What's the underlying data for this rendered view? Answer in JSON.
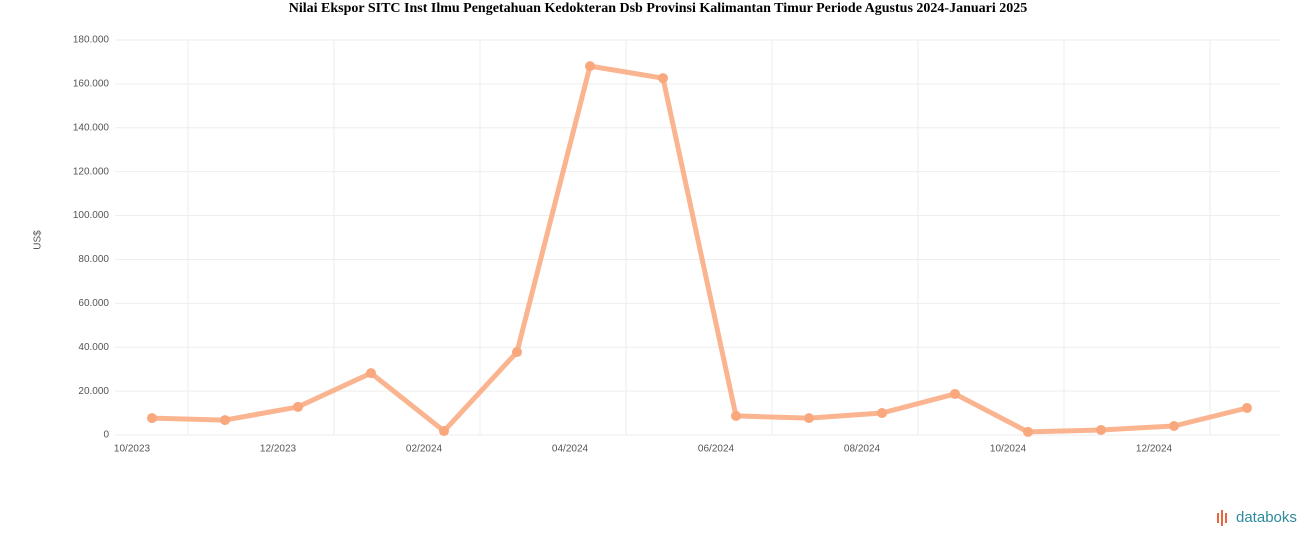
{
  "chart_data": {
    "type": "line",
    "title": "Nilai Ekspor SITC Inst Ilmu Pengetahuan Kedokteran Dsb Provinsi Kalimantan Timur Periode Agustus 2024-Januari 2025",
    "y_label": "US$",
    "categories": [
      "10/2023",
      null,
      "12/2023",
      null,
      "02/2024",
      null,
      "04/2024",
      null,
      "06/2024",
      null,
      "08/2024",
      null,
      "10/2024",
      null,
      "12/2024",
      null
    ],
    "series": [
      {
        "name": "Nilai Ekspor",
        "color": "#f9a77c",
        "values": [
          7700,
          6800,
          12800,
          28200,
          1800,
          37800,
          168100,
          162600,
          8700,
          7700,
          10000,
          18700,
          1400,
          2300,
          4100,
          12300
        ]
      }
    ],
    "ylim": [
      0,
      180000
    ],
    "yticks": [
      0,
      {
        "value": 20000,
        "label": "20.000"
      },
      {
        "value": 40000,
        "label": "40.000"
      },
      {
        "value": 60000,
        "label": "60.000"
      },
      {
        "value": 80000,
        "label": "80.000"
      },
      {
        "value": 100000,
        "label": "100.000"
      },
      {
        "value": 120000,
        "label": "120.000"
      },
      {
        "value": 140000,
        "label": "140.000"
      },
      {
        "value": 160000,
        "label": "160.000"
      },
      {
        "value": 180000,
        "label": "180.000"
      }
    ],
    "grid": true,
    "source": "databoks"
  }
}
